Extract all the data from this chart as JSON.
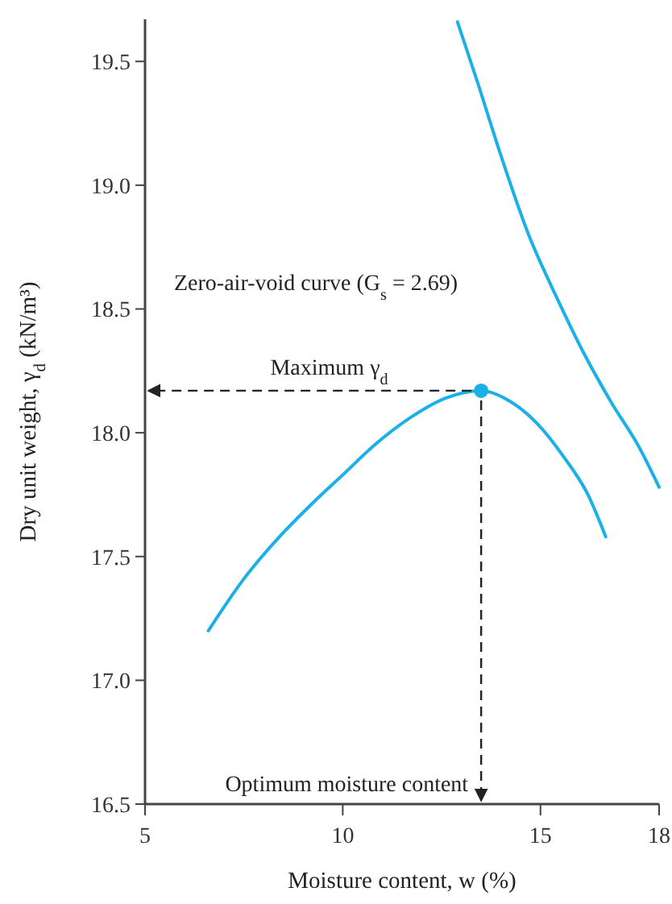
{
  "chart_data": {
    "type": "line",
    "xlabel": "Moisture content, w (%)",
    "ylabel": "Dry unit weight, γ$_{d}$ (kN/m³)",
    "xlim": [
      5,
      18
    ],
    "xticks": [
      5,
      10,
      15,
      18
    ],
    "ylim": [
      16.5,
      19.67
    ],
    "yticks": [
      {
        "value": 16.5,
        "label": "16.5"
      },
      {
        "value": 17,
        "label": "17.0"
      },
      {
        "value": 17.5,
        "label": "17.5"
      },
      {
        "value": 18,
        "label": "18.0"
      },
      {
        "value": 18.5,
        "label": "18.5"
      },
      {
        "value": 19,
        "label": "19.0"
      },
      {
        "value": 19.5,
        "label": "19.5"
      }
    ],
    "grid": false,
    "line_style": "solid",
    "series": [
      {
        "color": "#1cb0e8",
        "x": [
          6.6,
          7.5,
          8.4,
          9.2,
          10,
          10.8,
          11.7,
          12.6,
          13.5,
          14.3,
          14.9,
          15.6,
          16.2,
          16.65
        ],
        "values": [
          17.2,
          17.41,
          17.58,
          17.71,
          17.83,
          17.95,
          18.06,
          18.14,
          18.17,
          18.12,
          18.04,
          17.9,
          17.75,
          17.58
        ]
      },
      {
        "color": "#1cb0e8",
        "x": [
          12.9,
          13.4,
          14,
          14.7,
          15.4,
          16.1,
          16.8,
          17.5,
          18
        ],
        "values": [
          19.66,
          19.42,
          19.12,
          18.8,
          18.55,
          18.32,
          18.12,
          17.94,
          17.78
        ]
      },
      {
        "type": "scatter",
        "marker": "circle",
        "color": "#1cb0e8",
        "x": [
          13.5
        ],
        "values": [
          18.17
        ]
      }
    ],
    "annotations": [
      "Zero-air-void curve (G$_{s}$ = 2.69)",
      "Maximum γ$_{d}$",
      "Optimum moisture content"
    ]
  }
}
